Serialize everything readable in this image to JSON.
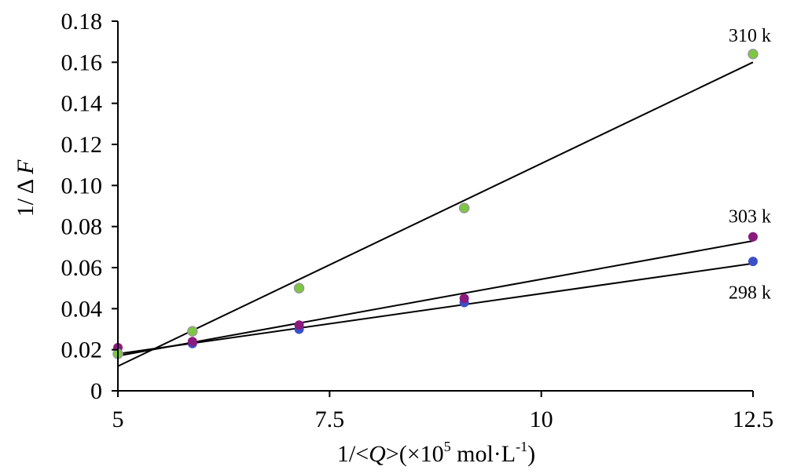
{
  "chart_data": {
    "type": "scatter",
    "title": "",
    "xlabel": "1/<Q>(×10⁵ mol·L⁻¹)",
    "xlabel_parts": {
      "a": "1/<",
      "q": "Q",
      "b": ">(×10",
      "exp": "5",
      "c": " mol·L",
      "exp2": "-1",
      "d": ")"
    },
    "ylabel": "1/ΔF",
    "ylabel_parts": {
      "a": "1/ Δ ",
      "f": "F"
    },
    "xlim": [
      5,
      12.5
    ],
    "ylim": [
      0,
      0.18
    ],
    "xticks": [
      {
        "value": 5,
        "label": "5"
      },
      {
        "value": 7.5,
        "label": "7.5"
      },
      {
        "value": 10,
        "label": "10"
      },
      {
        "value": 12.5,
        "label": "12.5"
      }
    ],
    "yticks": [
      {
        "value": 0,
        "label": "0"
      },
      {
        "value": 0.02,
        "label": "0.02"
      },
      {
        "value": 0.04,
        "label": "0.04"
      },
      {
        "value": 0.06,
        "label": "0.06"
      },
      {
        "value": 0.08,
        "label": "0.08"
      },
      {
        "value": 0.1,
        "label": "0.10"
      },
      {
        "value": 0.12,
        "label": "0.12"
      },
      {
        "value": 0.14,
        "label": "0.14"
      },
      {
        "value": 0.16,
        "label": "0.16"
      },
      {
        "value": 0.18,
        "label": "0.18"
      }
    ],
    "grid": false,
    "series": [
      {
        "name": "298 k",
        "color": "#3a4fc8",
        "x": [
          5.0,
          5.88,
          7.14,
          9.09,
          12.5
        ],
        "y": [
          0.018,
          0.023,
          0.03,
          0.043,
          0.063
        ],
        "fit": [
          [
            5.0,
            0.018
          ],
          [
            12.5,
            0.062
          ]
        ],
        "label_pos": [
          12.5,
          0.045
        ]
      },
      {
        "name": "303 k",
        "color": "#8a1a7e",
        "x": [
          5.0,
          5.88,
          7.14,
          9.09,
          12.5
        ],
        "y": [
          0.021,
          0.024,
          0.032,
          0.045,
          0.075
        ],
        "fit": [
          [
            5.0,
            0.017
          ],
          [
            12.5,
            0.073
          ]
        ],
        "label_pos": [
          12.5,
          0.082
        ]
      },
      {
        "name": "310 k",
        "color": "#7cc840",
        "x": [
          5.0,
          5.88,
          7.14,
          9.09,
          12.5
        ],
        "y": [
          0.018,
          0.029,
          0.05,
          0.089,
          0.164
        ],
        "fit": [
          [
            5.0,
            0.012
          ],
          [
            12.5,
            0.16
          ]
        ],
        "label_pos": [
          12.5,
          0.17
        ]
      }
    ]
  }
}
